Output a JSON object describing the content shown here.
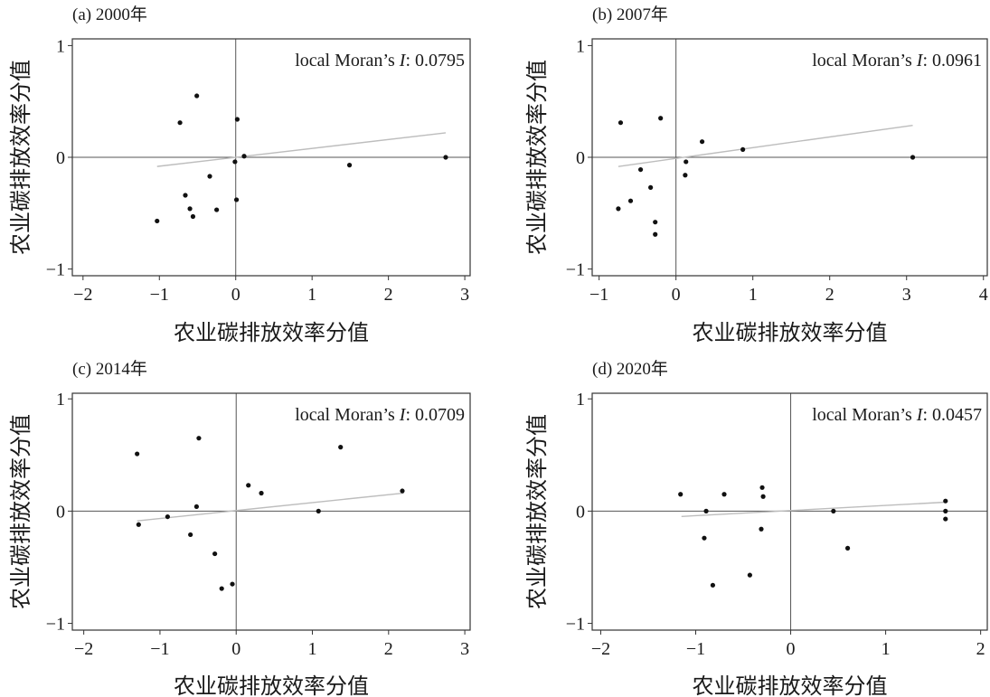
{
  "figure": {
    "colors": {
      "point": "#111111",
      "trendline": "#bdbdbd",
      "frame": "#333333",
      "reference": "#555555"
    }
  },
  "chart_data": [
    {
      "type": "scatter",
      "title": "(a) 2000年",
      "xlabel": "农业碳排放效率分值",
      "ylabel": "农业碳排放效率分值",
      "annotation": {
        "before": "local Moran’s ",
        "italic": "I",
        "after": ": 0.0795"
      },
      "xlim": [
        -2.14,
        3.07
      ],
      "ylim": [
        -1.06,
        1.06
      ],
      "xticks": [
        -2,
        -1,
        0,
        1,
        2,
        3
      ],
      "xtick_labels": [
        "−2",
        "−1",
        "0",
        "1",
        "2",
        "3"
      ],
      "yticks": [
        -1,
        0,
        1
      ],
      "ytick_labels": [
        "−1",
        "0",
        "1"
      ],
      "reference_lines": {
        "x": 0,
        "y": 0
      },
      "trendline": {
        "slope": 0.0795,
        "intercept": 0.0,
        "x_range": [
          -1.03,
          2.75
        ]
      },
      "points": [
        {
          "x": -0.51,
          "y": 0.55
        },
        {
          "x": -0.73,
          "y": 0.31
        },
        {
          "x": 0.02,
          "y": 0.34
        },
        {
          "x": 0.11,
          "y": 0.01
        },
        {
          "x": -0.01,
          "y": -0.04
        },
        {
          "x": -0.34,
          "y": -0.17
        },
        {
          "x": 1.49,
          "y": -0.07
        },
        {
          "x": 2.75,
          "y": 0.0
        },
        {
          "x": -0.66,
          "y": -0.34
        },
        {
          "x": -0.6,
          "y": -0.46
        },
        {
          "x": -0.56,
          "y": -0.53
        },
        {
          "x": -0.25,
          "y": -0.47
        },
        {
          "x": 0.01,
          "y": -0.38
        },
        {
          "x": -1.03,
          "y": -0.57
        }
      ]
    },
    {
      "type": "scatter",
      "title": "(b) 2007年",
      "xlabel": "农业碳排放效率分值",
      "ylabel": "农业碳排放效率分值",
      "annotation": {
        "before": "local Moran’s ",
        "italic": "I",
        "after": ": 0.0961"
      },
      "xlim": [
        -1.09,
        4.05
      ],
      "ylim": [
        -1.06,
        1.06
      ],
      "xticks": [
        -1,
        0,
        1,
        2,
        3,
        4
      ],
      "xtick_labels": [
        "−1",
        "0",
        "1",
        "2",
        "3",
        "4"
      ],
      "yticks": [
        -1,
        0,
        1
      ],
      "ytick_labels": [
        "−1",
        "0",
        "1"
      ],
      "reference_lines": {
        "x": 0,
        "y": 0
      },
      "trendline": {
        "slope": 0.0961,
        "intercept": -0.01,
        "x_range": [
          -0.75,
          3.08
        ]
      },
      "points": [
        {
          "x": -0.72,
          "y": 0.31
        },
        {
          "x": -0.2,
          "y": 0.35
        },
        {
          "x": 0.34,
          "y": 0.14
        },
        {
          "x": 0.87,
          "y": 0.07
        },
        {
          "x": 3.08,
          "y": 0.0
        },
        {
          "x": 0.13,
          "y": -0.04
        },
        {
          "x": 0.12,
          "y": -0.16
        },
        {
          "x": -0.46,
          "y": -0.11
        },
        {
          "x": -0.33,
          "y": -0.27
        },
        {
          "x": -0.59,
          "y": -0.39
        },
        {
          "x": -0.75,
          "y": -0.46
        },
        {
          "x": -0.27,
          "y": -0.58
        },
        {
          "x": -0.27,
          "y": -0.69
        }
      ]
    },
    {
      "type": "scatter",
      "title": "(c) 2014年",
      "xlabel": "农业碳排放效率分值",
      "ylabel": "农业碳排放效率分值",
      "annotation": {
        "before": "local Moran’s ",
        "italic": "I",
        "after": ": 0.0709"
      },
      "xlim": [
        -2.15,
        3.07
      ],
      "ylim": [
        -1.06,
        1.05
      ],
      "xticks": [
        -2,
        -1,
        0,
        1,
        2,
        3
      ],
      "xtick_labels": [
        "−2",
        "−1",
        "0",
        "1",
        "2",
        "3"
      ],
      "yticks": [
        -1,
        0,
        1
      ],
      "ytick_labels": [
        "−1",
        "0",
        "1"
      ],
      "reference_lines": {
        "x": 0,
        "y": 0
      },
      "trendline": {
        "slope": 0.0709,
        "intercept": 0.005,
        "x_range": [
          -1.3,
          2.2
        ]
      },
      "points": [
        {
          "x": -0.49,
          "y": 0.65
        },
        {
          "x": -1.3,
          "y": 0.51
        },
        {
          "x": 1.37,
          "y": 0.57
        },
        {
          "x": 0.16,
          "y": 0.23
        },
        {
          "x": 0.33,
          "y": 0.16
        },
        {
          "x": 2.18,
          "y": 0.18
        },
        {
          "x": -0.52,
          "y": 0.04
        },
        {
          "x": 1.08,
          "y": 0.0
        },
        {
          "x": -0.9,
          "y": -0.05
        },
        {
          "x": -1.28,
          "y": -0.12
        },
        {
          "x": -0.6,
          "y": -0.21
        },
        {
          "x": -0.28,
          "y": -0.38
        },
        {
          "x": -0.05,
          "y": -0.65
        },
        {
          "x": -0.19,
          "y": -0.69
        }
      ]
    },
    {
      "type": "scatter",
      "title": "(d) 2020年",
      "xlabel": "农业碳排放效率分值",
      "ylabel": "农业碳排放效率分值",
      "annotation": {
        "before": "local Moran’s ",
        "italic": "I",
        "after": ": 0.0457"
      },
      "xlim": [
        -2.09,
        2.07
      ],
      "ylim": [
        -1.06,
        1.05
      ],
      "xticks": [
        -2,
        -1,
        0,
        1,
        2
      ],
      "xtick_labels": [
        "−2",
        "−1",
        "0",
        "1",
        "2"
      ],
      "yticks": [
        -1,
        0,
        1
      ],
      "ytick_labels": [
        "−1",
        "0",
        "1"
      ],
      "reference_lines": {
        "x": 0,
        "y": 0
      },
      "trendline": {
        "slope": 0.0457,
        "intercept": 0.005,
        "x_range": [
          -1.15,
          1.63
        ]
      },
      "points": [
        {
          "x": -1.16,
          "y": 0.15
        },
        {
          "x": -0.7,
          "y": 0.15
        },
        {
          "x": -0.3,
          "y": 0.21
        },
        {
          "x": -0.29,
          "y": 0.13
        },
        {
          "x": -0.89,
          "y": 0.0
        },
        {
          "x": 0.45,
          "y": 0.0
        },
        {
          "x": 1.63,
          "y": 0.09
        },
        {
          "x": 1.63,
          "y": 0.0
        },
        {
          "x": 1.63,
          "y": -0.07
        },
        {
          "x": -0.31,
          "y": -0.16
        },
        {
          "x": -0.91,
          "y": -0.24
        },
        {
          "x": 0.6,
          "y": -0.33
        },
        {
          "x": -0.43,
          "y": -0.57
        },
        {
          "x": -0.82,
          "y": -0.66
        }
      ]
    }
  ]
}
